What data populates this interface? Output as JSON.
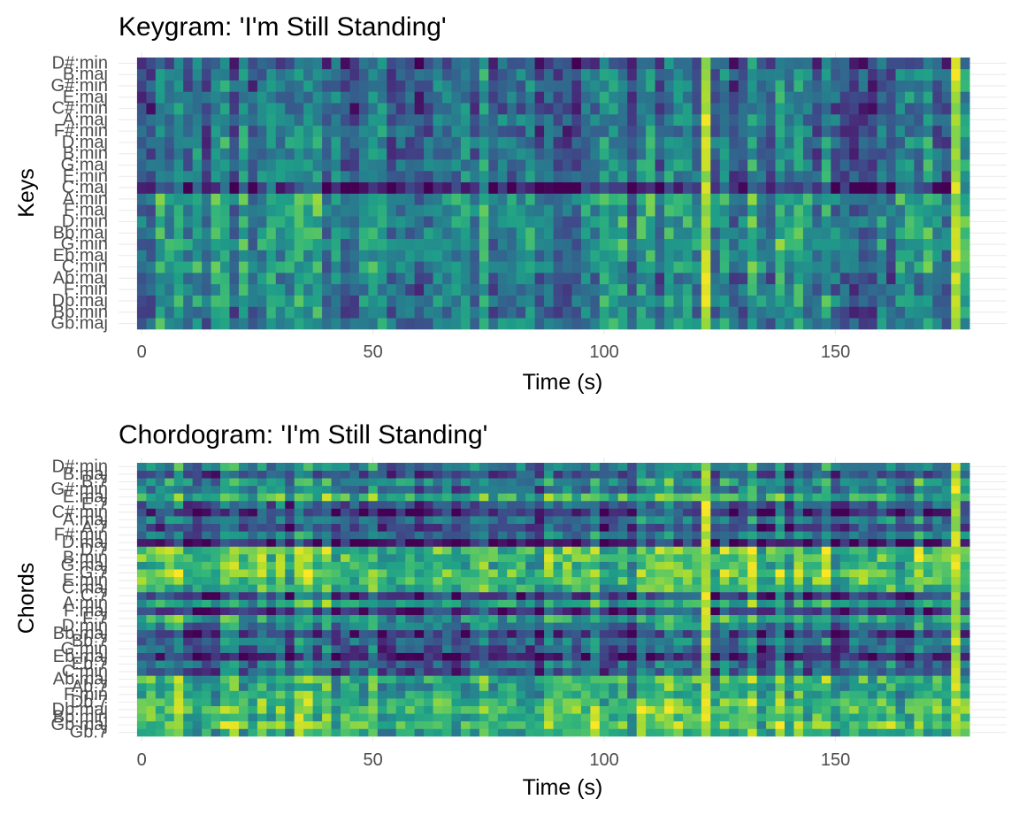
{
  "chart_data": [
    {
      "type": "heatmap",
      "title": "Keygram: 'I'm Still Standing'",
      "xlabel": "Time (s)",
      "ylabel": "Keys",
      "xlim": [
        -5,
        187
      ],
      "x_ticks": [
        "0",
        "50",
        "100",
        "150"
      ],
      "x_tick_values": [
        0,
        50,
        100,
        150
      ],
      "time_range": [
        0,
        178
      ],
      "time_step": 2,
      "grid": true,
      "colormap": "viridis",
      "rows": [
        "Gb:maj",
        "Bb:min",
        "Db:maj",
        "F:min",
        "Ab:maj",
        "C:min",
        "Eb:maj",
        "G:min",
        "Bb:maj",
        "D:min",
        "F:maj",
        "A:min",
        "C:maj",
        "E:min",
        "G:maj",
        "B:min",
        "D:maj",
        "F#:min",
        "A:maj",
        "C#:min",
        "E:maj",
        "G#:min",
        "B:maj",
        "D#:min"
      ],
      "row_levels": [
        0.45,
        0.4,
        0.48,
        0.42,
        0.42,
        0.5,
        0.47,
        0.52,
        0.5,
        0.5,
        0.48,
        0.55,
        0.15,
        0.4,
        0.42,
        0.38,
        0.4,
        0.36,
        0.4,
        0.34,
        0.38,
        0.38,
        0.4,
        0.3
      ],
      "bright_times": [
        122,
        176
      ]
    },
    {
      "type": "heatmap",
      "title": "Chordogram: 'I'm Still Standing'",
      "xlabel": "Time (s)",
      "ylabel": "Chords",
      "xlim": [
        -5,
        187
      ],
      "x_ticks": [
        "0",
        "50",
        "100",
        "150"
      ],
      "x_tick_values": [
        0,
        50,
        100,
        150
      ],
      "time_range": [
        0,
        178
      ],
      "time_step": 2,
      "grid": true,
      "colormap": "viridis",
      "rows": [
        "Gb:7",
        "Gb:maj",
        "Bb:min",
        "Db:maj",
        "Db:7",
        "F:min",
        "Ab:7",
        "Ab:maj",
        "C:min",
        "Eb:7",
        "Eb:maj",
        "G:min",
        "Bb:7",
        "Bb:maj",
        "D:min",
        "F:7",
        "F:maj",
        "A:min",
        "C:7",
        "C:maj",
        "E:min",
        "G:7",
        "G:maj",
        "B:min",
        "D:7",
        "D:maj",
        "F#:min",
        "A:7",
        "A:maj",
        "C#:min",
        "E:7",
        "E:maj",
        "G#:min",
        "B:7",
        "B:maj",
        "D#:min"
      ],
      "row_levels": [
        0.6,
        0.72,
        0.65,
        0.72,
        0.68,
        0.6,
        0.56,
        0.64,
        0.3,
        0.38,
        0.12,
        0.3,
        0.38,
        0.2,
        0.42,
        0.56,
        0.16,
        0.58,
        0.2,
        0.62,
        0.7,
        0.74,
        0.64,
        0.7,
        0.72,
        0.08,
        0.4,
        0.22,
        0.38,
        0.14,
        0.3,
        0.64,
        0.4,
        0.52,
        0.28,
        0.46
      ],
      "bright_times": [
        122,
        176
      ]
    }
  ]
}
